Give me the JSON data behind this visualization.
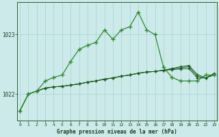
{
  "title": "Graphe pression niveau de la mer (hPa)",
  "background_color": "#cceaea",
  "grid_color": "#aacfcf",
  "line_color_dark": "#1a5c1a",
  "line_color_bright": "#2d8b2d",
  "x_ticks": [
    0,
    1,
    2,
    3,
    4,
    5,
    6,
    7,
    8,
    9,
    10,
    11,
    12,
    13,
    14,
    15,
    16,
    17,
    18,
    19,
    20,
    21,
    22,
    23
  ],
  "y_ticks": [
    1022,
    1023
  ],
  "ylim": [
    1021.55,
    1023.55
  ],
  "xlim": [
    -0.3,
    23.3
  ],
  "series_volatile": [
    1021.72,
    1022.0,
    1022.05,
    1022.22,
    1022.28,
    1022.32,
    1022.55,
    1022.75,
    1022.82,
    1022.87,
    1023.08,
    1022.92,
    1023.08,
    1023.13,
    1023.38,
    1023.08,
    1023.0,
    1022.45,
    1022.28,
    1022.22,
    1022.22,
    1022.22,
    1022.32,
    1022.32
  ],
  "series_flat1": [
    1021.72,
    1022.0,
    1022.05,
    1022.1,
    1022.12,
    1022.13,
    1022.15,
    1022.17,
    1022.2,
    1022.22,
    1022.25,
    1022.27,
    1022.3,
    1022.32,
    1022.35,
    1022.37,
    1022.38,
    1022.4,
    1022.41,
    1022.42,
    1022.43,
    1022.27,
    1022.27,
    1022.32
  ],
  "series_flat2": [
    1021.72,
    1022.0,
    1022.05,
    1022.1,
    1022.12,
    1022.13,
    1022.15,
    1022.17,
    1022.2,
    1022.22,
    1022.25,
    1022.27,
    1022.3,
    1022.32,
    1022.35,
    1022.37,
    1022.38,
    1022.4,
    1022.42,
    1022.44,
    1022.46,
    1022.3,
    1022.27,
    1022.33
  ],
  "series_flat3": [
    1021.72,
    1022.0,
    1022.05,
    1022.1,
    1022.12,
    1022.13,
    1022.15,
    1022.17,
    1022.2,
    1022.22,
    1022.25,
    1022.27,
    1022.3,
    1022.32,
    1022.35,
    1022.37,
    1022.38,
    1022.4,
    1022.43,
    1022.46,
    1022.48,
    1022.33,
    1022.27,
    1022.35
  ]
}
